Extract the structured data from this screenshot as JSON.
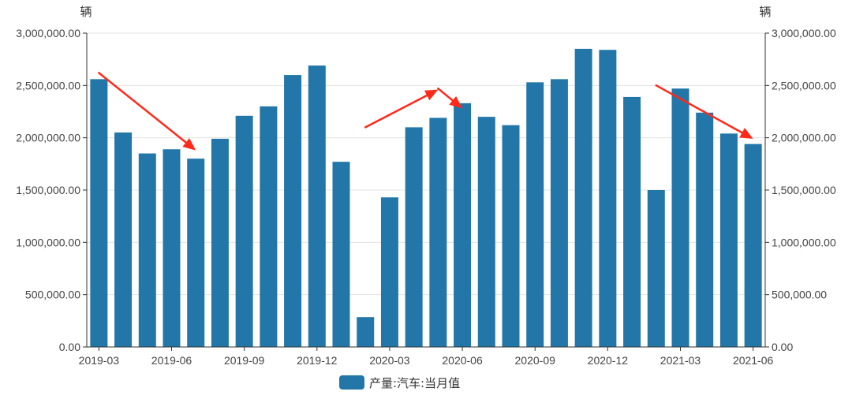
{
  "chart_data": {
    "type": "bar",
    "categories": [
      "2019-03",
      "2019-04",
      "2019-05",
      "2019-06",
      "2019-07",
      "2019-08",
      "2019-09",
      "2019-10",
      "2019-11",
      "2019-12",
      "2020-01",
      "2020-02",
      "2020-03",
      "2020-04",
      "2020-05",
      "2020-06",
      "2020-07",
      "2020-08",
      "2020-09",
      "2020-10",
      "2020-11",
      "2020-12",
      "2021-01",
      "2021-02",
      "2021-03",
      "2021-04",
      "2021-05",
      "2021-06"
    ],
    "x_tick_labels": [
      "2019-03",
      "2019-06",
      "2019-09",
      "2019-12",
      "2020-03",
      "2020-06",
      "2020-09",
      "2020-12",
      "2021-03",
      "2021-06"
    ],
    "series": [
      {
        "name": "产量:汽车:当月值",
        "color": "#2277a8",
        "values": [
          2560000,
          2050000,
          1850000,
          1890000,
          1800000,
          1990000,
          2210000,
          2300000,
          2600000,
          2690000,
          1770000,
          285000,
          1430000,
          2100000,
          2190000,
          2330000,
          2200000,
          2120000,
          2530000,
          2560000,
          2850000,
          2840000,
          2390000,
          1500000,
          2470000,
          2240000,
          2040000,
          1940000
        ]
      }
    ],
    "y_left_label": "辆",
    "y_right_label": "辆",
    "ylim": [
      0,
      3000000
    ],
    "y_ticks": [
      0,
      500000,
      1000000,
      1500000,
      2000000,
      2500000,
      3000000
    ],
    "y_tick_labels": [
      "0.00",
      "500,000.00",
      "1,000,000.00",
      "1,500,000.00",
      "2,000,000.00",
      "2,500,000.00",
      "3,000,000.00"
    ],
    "grid": true,
    "legend_position": "bottom-center",
    "annotations": [
      {
        "type": "arrow",
        "color": "#ff2a1a",
        "from": [
          "2019-03",
          2620000
        ],
        "to": [
          "2019-07",
          1880000
        ]
      },
      {
        "type": "arrow",
        "color": "#ff2a1a",
        "from": [
          "2020-02",
          2100000
        ],
        "to": [
          "2020-05",
          2460000
        ]
      },
      {
        "type": "arrow",
        "color": "#ff2a1a",
        "from": [
          "2020-05",
          2470000
        ],
        "to": [
          "2020-06",
          2280000
        ]
      },
      {
        "type": "arrow",
        "color": "#ff2a1a",
        "from": [
          "2021-02",
          2500000
        ],
        "to": [
          "2021-06",
          1990000
        ]
      }
    ]
  }
}
